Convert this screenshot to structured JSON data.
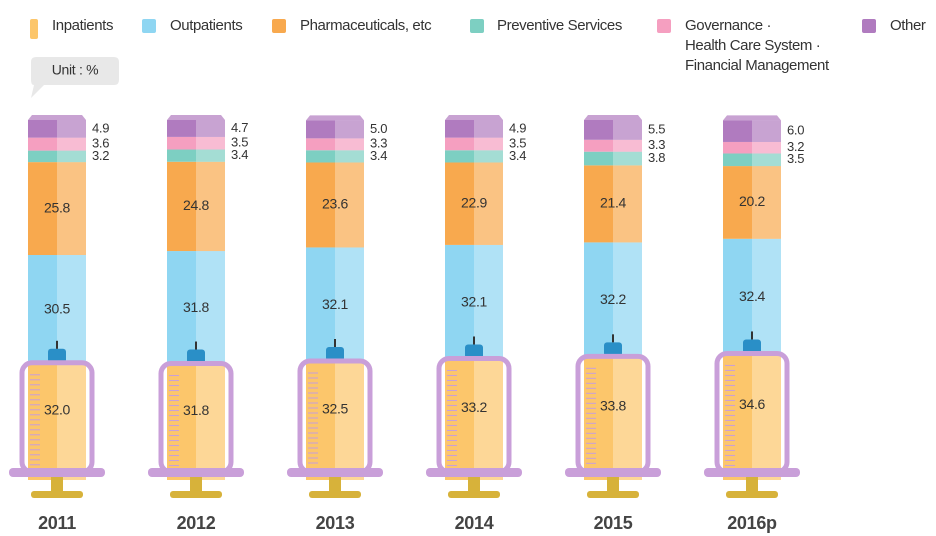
{
  "chart_data": {
    "type": "stacked-bar",
    "note": "Unit : %",
    "categories": [
      "2011",
      "2012",
      "2013",
      "2014",
      "2015",
      "2016p"
    ],
    "series": [
      {
        "name": "Inpatients",
        "color": "#fcc66b",
        "values": [
          32.0,
          31.8,
          32.5,
          33.2,
          33.8,
          34.6
        ],
        "value_labels": [
          "32.0",
          "31.8",
          "32.5",
          "33.2",
          "33.8",
          "34.6"
        ]
      },
      {
        "name": "Outpatients",
        "color": "#8fd6f2",
        "values": [
          30.5,
          31.8,
          32.1,
          32.1,
          32.2,
          32.4
        ],
        "value_labels": [
          "30.5",
          "31.8",
          "32.1",
          "32.1",
          "32.2",
          "32.4"
        ]
      },
      {
        "name": "Pharmaceuticals, etc",
        "color": "#f8a94e",
        "values": [
          25.8,
          24.8,
          23.6,
          22.9,
          21.4,
          20.2
        ],
        "value_labels": [
          "25.8",
          "24.8",
          "23.6",
          "22.9",
          "21.4",
          "20.2"
        ]
      },
      {
        "name": "Preventive Services",
        "color": "#7dcfc2",
        "values": [
          3.2,
          3.4,
          3.4,
          3.4,
          3.8,
          3.5
        ],
        "value_labels": [
          "3.2",
          "3.4",
          "3.4",
          "3.4",
          "3.8",
          "3.5"
        ]
      },
      {
        "name": "Governance ·\nHealth Care System ·\nFinancial Management",
        "color": "#f59fc0",
        "values": [
          3.6,
          3.5,
          3.3,
          3.5,
          3.3,
          3.2
        ],
        "value_labels": [
          "3.6",
          "3.5",
          "3.3",
          "3.5",
          "3.3",
          "3.2"
        ]
      },
      {
        "name": "Other",
        "color": "#b07bbf",
        "values": [
          4.9,
          4.7,
          5.0,
          4.9,
          5.5,
          6.0
        ],
        "value_labels": [
          "4.9",
          "4.7",
          "5.0",
          "4.9",
          "5.5",
          "6.0"
        ]
      }
    ]
  }
}
